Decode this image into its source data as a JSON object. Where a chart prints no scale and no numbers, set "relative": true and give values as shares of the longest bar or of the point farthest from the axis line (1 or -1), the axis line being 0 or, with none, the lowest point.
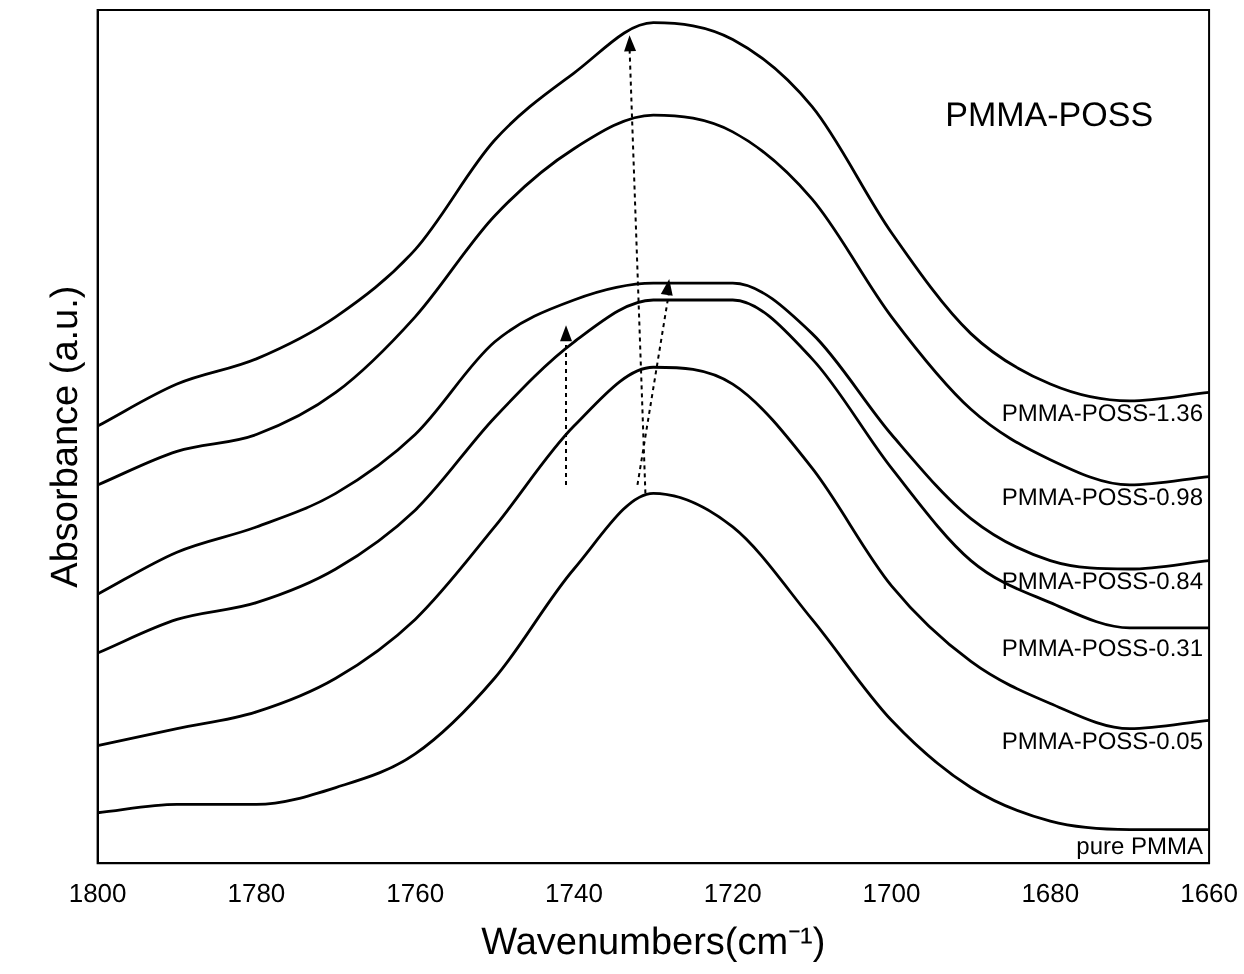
{
  "chart_data": {
    "type": "line",
    "xlabel": "Wavenumbers(cm⁻¹)",
    "ylabel": "Absorbance (a.u.)",
    "relative": true,
    "legend": false,
    "grid": false,
    "marker": "none",
    "line_style": "solid",
    "x": [
      1800,
      1790,
      1780,
      1770,
      1760,
      1750,
      1740,
      1730,
      1720,
      1710,
      1700,
      1690,
      1680,
      1670,
      1660
    ],
    "xlim": [
      1800,
      1660
    ],
    "xticks": [
      1800,
      1780,
      1760,
      1740,
      1720,
      1700,
      1680,
      1660
    ],
    "annotations": [
      "PMMA-POSS"
    ],
    "series": [
      {
        "name": "pure PMMA",
        "color": "#000000",
        "values": [
          0.06,
          0.07,
          0.07,
          0.09,
          0.13,
          0.22,
          0.35,
          0.44,
          0.4,
          0.29,
          0.17,
          0.09,
          0.05,
          0.04,
          0.04
        ]
      },
      {
        "name": "PMMA-POSS-0.05",
        "color": "#000000",
        "values": [
          0.14,
          0.16,
          0.18,
          0.22,
          0.29,
          0.4,
          0.52,
          0.59,
          0.57,
          0.47,
          0.33,
          0.24,
          0.19,
          0.16,
          0.17
        ]
      },
      {
        "name": "PMMA-POSS-0.31",
        "color": "#000000",
        "values": [
          0.25,
          0.29,
          0.31,
          0.35,
          0.42,
          0.53,
          0.62,
          0.67,
          0.67,
          0.6,
          0.47,
          0.36,
          0.31,
          0.28,
          0.28
        ]
      },
      {
        "name": "PMMA-POSS-0.84",
        "color": "#000000",
        "values": [
          0.32,
          0.37,
          0.4,
          0.44,
          0.51,
          0.62,
          0.67,
          0.69,
          0.69,
          0.63,
          0.51,
          0.41,
          0.36,
          0.35,
          0.36
        ]
      },
      {
        "name": "PMMA-POSS-0.98",
        "color": "#000000",
        "values": [
          0.45,
          0.49,
          0.51,
          0.56,
          0.65,
          0.77,
          0.85,
          0.89,
          0.87,
          0.79,
          0.65,
          0.54,
          0.48,
          0.45,
          0.46
        ]
      },
      {
        "name": "PMMA-POSS-1.36",
        "color": "#000000",
        "values": [
          0.52,
          0.57,
          0.6,
          0.65,
          0.73,
          0.86,
          0.94,
          1.0,
          0.98,
          0.9,
          0.75,
          0.63,
          0.57,
          0.55,
          0.56
        ]
      }
    ]
  }
}
